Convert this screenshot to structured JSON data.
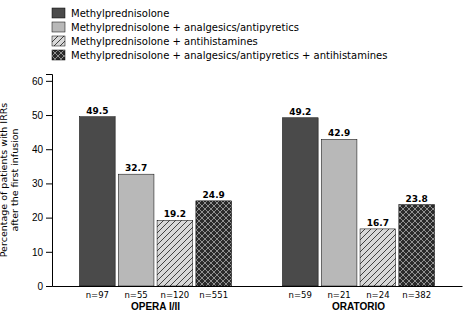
{
  "chart_data": {
    "type": "bar",
    "categories": [
      "OPERA I/II",
      "ORATORIO"
    ],
    "series": [
      {
        "name": "Methylprednisolone",
        "color": "#4a4a4a",
        "values": [
          49.5,
          49.2
        ],
        "labels": [
          "n=97",
          "n=59"
        ]
      },
      {
        "name": "Methylprednisolone + analgesics/antipyretics",
        "color": "#b8b8b8",
        "values": [
          32.7,
          42.9
        ],
        "labels": [
          "n=55",
          "n=21"
        ]
      },
      {
        "name": "Methylprednisolone + antihistamines",
        "color": "#d8d8d8",
        "values": [
          19.2,
          16.7
        ],
        "labels": [
          "n=120",
          "n=24"
        ]
      },
      {
        "name": "Methylprednisolone + analgesics/antipyretics + antihistamines",
        "color": "#2a2a2a",
        "values": [
          24.9,
          23.8
        ],
        "labels": [
          "n=551",
          "n=382"
        ]
      }
    ],
    "ylabel": "Percentage of patients with IRRs\nafter the first infusion",
    "ylim": [
      0,
      62
    ],
    "yticks": [
      0,
      10,
      20,
      30,
      40,
      50,
      60
    ],
    "grid": false,
    "legend": "top",
    "data_labels": true
  }
}
